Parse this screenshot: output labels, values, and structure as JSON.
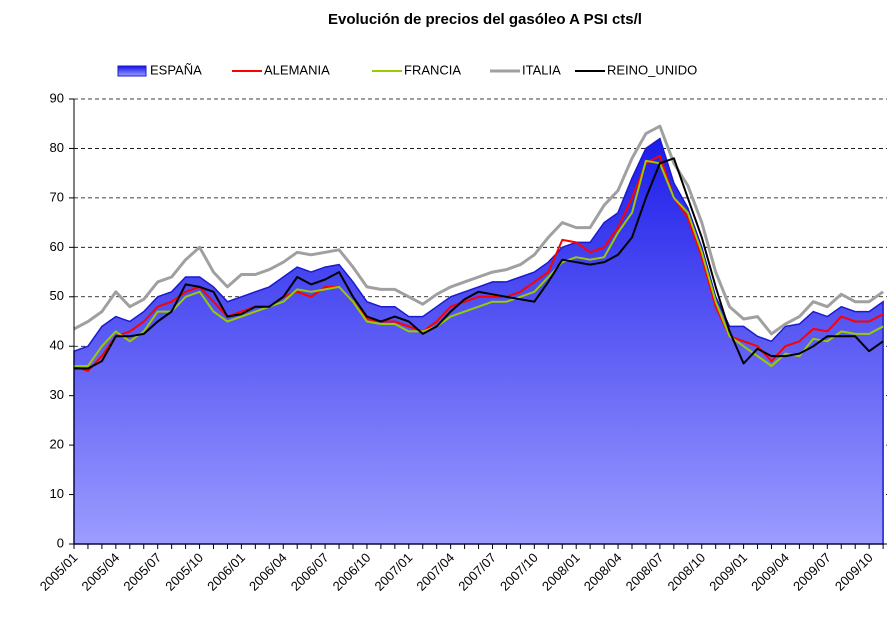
{
  "chart_data": {
    "type": "line",
    "title": "Evolución de precios del gasóleo A PSI cts/l",
    "categories": [
      "2005/01",
      null,
      null,
      "2005/04",
      null,
      null,
      "2005/07",
      null,
      null,
      "2005/10",
      null,
      null,
      "2006/01",
      null,
      null,
      "2006/04",
      null,
      null,
      "2006/07",
      null,
      null,
      "2006/10",
      null,
      null,
      "2007/01",
      null,
      null,
      "2007/04",
      null,
      null,
      "2007/07",
      null,
      null,
      "2007/10",
      null,
      null,
      "2008/01",
      null,
      null,
      "2008/04",
      null,
      null,
      "2008/07",
      null,
      null,
      "2008/10",
      null,
      null,
      "2009/01",
      null,
      null,
      "2009/04",
      null,
      null,
      "2009/07",
      null,
      null,
      "2009/10",
      null
    ],
    "series": [
      {
        "name": "ESPAÑA",
        "color": "#1a1ad0",
        "area": true,
        "values": [
          39,
          40,
          44,
          46,
          45,
          47,
          50,
          51,
          54,
          54,
          52,
          49,
          50,
          51,
          52,
          54,
          56,
          55,
          56,
          56.5,
          53,
          49,
          48,
          48,
          46,
          46,
          48,
          50,
          51,
          52,
          53,
          53,
          54,
          55,
          57,
          60,
          61,
          61,
          65,
          67,
          74,
          80,
          82,
          73,
          68,
          60,
          50,
          44,
          44,
          42,
          41,
          44,
          44.5,
          47,
          46,
          48,
          47,
          47,
          49
        ]
      },
      {
        "name": "ALEMANIA",
        "color": "#ff0000",
        "values": [
          36,
          35,
          38,
          42,
          43,
          45,
          48,
          49,
          51,
          52,
          49,
          46,
          47,
          48,
          48,
          50,
          51,
          50,
          52,
          52,
          49,
          45.5,
          45,
          45,
          44,
          43,
          45,
          48,
          49,
          50,
          50,
          50,
          51,
          53,
          55,
          61.5,
          61,
          59,
          60,
          64,
          70,
          77,
          78.5,
          70,
          66,
          58,
          48,
          42,
          41,
          40,
          37,
          40,
          41,
          43.5,
          43,
          46,
          45,
          45,
          46.5
        ]
      },
      {
        "name": "FRANCIA",
        "color": "#99cc00",
        "values": [
          36,
          36,
          40,
          43,
          41,
          43,
          47,
          47,
          50,
          51,
          47,
          45,
          46,
          47,
          48,
          49,
          51.5,
          51,
          51.5,
          52,
          49,
          45,
          44.5,
          44.5,
          43,
          43,
          44,
          46,
          47,
          48,
          49,
          49,
          50,
          51,
          54,
          57,
          58,
          57.5,
          58,
          63,
          67,
          77.5,
          77,
          70,
          67,
          59,
          49,
          42,
          40,
          38,
          36,
          38.5,
          38,
          41.5,
          41,
          43,
          42.5,
          42.5,
          44
        ]
      },
      {
        "name": "ITALIA",
        "color": "#a0a0a0",
        "values": [
          43.5,
          45,
          47,
          51,
          48,
          49.5,
          53,
          54,
          57.5,
          60,
          55,
          52,
          54.5,
          54.5,
          55.5,
          57,
          59,
          58.5,
          59,
          59.5,
          56,
          52,
          51.5,
          51.5,
          50,
          48.5,
          50.5,
          52,
          53,
          54,
          55,
          55.5,
          56.5,
          58.5,
          62,
          65,
          64,
          64,
          68.5,
          71.5,
          78,
          83,
          84.5,
          77,
          72.5,
          65,
          55,
          48,
          45.5,
          46,
          42.5,
          44.5,
          46,
          49,
          48,
          50.5,
          49,
          49,
          51
        ]
      },
      {
        "name": "REINO_UNIDO",
        "color": "#000000",
        "values": [
          35.5,
          35.5,
          37,
          42,
          42,
          42.5,
          45,
          47,
          52.5,
          52,
          51,
          46,
          46.5,
          48,
          48,
          50,
          54,
          52.5,
          53.5,
          55,
          50,
          46,
          45,
          46,
          45,
          42.5,
          44,
          47,
          49.5,
          51,
          50.5,
          50,
          49.5,
          49,
          53,
          57.5,
          57,
          56.5,
          57,
          58.5,
          62,
          70,
          77,
          78,
          70,
          62,
          52,
          43,
          36.5,
          39.5,
          38,
          38,
          38.5,
          40,
          42,
          42,
          42,
          39,
          41
        ]
      }
    ],
    "ylim": [
      0,
      90
    ],
    "yticks": [
      0,
      10,
      20,
      30,
      40,
      50,
      60,
      70,
      80,
      90
    ],
    "grid": true
  }
}
